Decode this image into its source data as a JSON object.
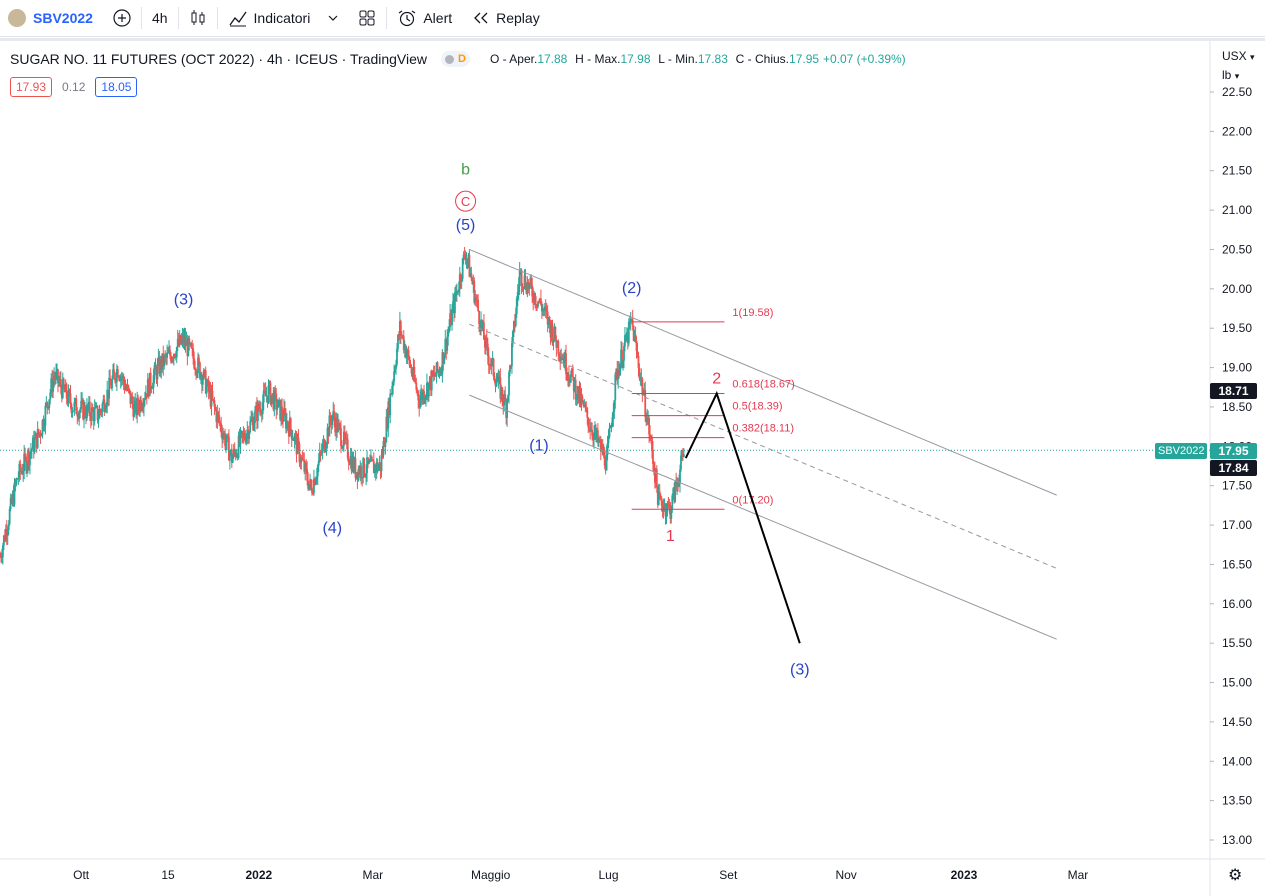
{
  "toolbar": {
    "symbol": "SBV2022",
    "interval": "4h",
    "indicators_label": "Indicatori",
    "alert_label": "Alert",
    "replay_label": "Replay"
  },
  "legend": {
    "title": "SUGAR NO. 11 FUTURES (OCT 2022) · 4h · ICEUS · TradingView",
    "d_badge": "D",
    "o_label": "O - Aper.",
    "o_value": "17.88",
    "h_label": "H - Max.",
    "h_value": "17.98",
    "l_label": "L - Min.",
    "l_value": "17.83",
    "c_label": "C - Chius.",
    "c_value": "17.95",
    "change": "+0.07 (+0.39%)"
  },
  "quote": {
    "bid": "17.93",
    "spread": "0.12",
    "ask": "18.05"
  },
  "axis": {
    "currency": "USX",
    "unit": "lb"
  },
  "tags": {
    "fib_tag": "18.71",
    "symbol_tag": "SBV2022",
    "last_price": "17.95",
    "crosshair_price": "17.84"
  },
  "colors": {
    "up": "#26a69a",
    "down": "#ef5350",
    "wave_blue": "#2943c8",
    "wave_red": "#e53950",
    "wave_green": "#43a047",
    "fib": "#e53950"
  },
  "chart_data": {
    "type": "candlestick",
    "title": "SUGAR NO. 11 FUTURES (OCT 2022)",
    "xlabel": "",
    "ylabel": "",
    "ylim": [
      12.75,
      22.7
    ],
    "yticks": [
      "22.50",
      "22.00",
      "21.50",
      "21.00",
      "20.50",
      "20.00",
      "19.50",
      "19.00",
      "18.50",
      "18.00",
      "17.50",
      "17.00",
      "16.50",
      "16.00",
      "15.50",
      "15.00",
      "14.50",
      "14.00",
      "13.50",
      "13.00"
    ],
    "xticks": [
      "Ott",
      "15",
      "2022",
      "Mar",
      "Maggio",
      "Lug",
      "Set",
      "Nov",
      "2023",
      "Mar"
    ],
    "x_range": [
      "2021-08-20",
      "2023-03-15"
    ],
    "price_path": [
      [
        "2021-08-20",
        16.6
      ],
      [
        "2021-08-29",
        17.6
      ],
      [
        "2021-09-10",
        18.2
      ],
      [
        "2021-09-17",
        18.9
      ],
      [
        "2021-09-27",
        18.5
      ],
      [
        "2021-10-10",
        18.4
      ],
      [
        "2021-10-20",
        19.0
      ],
      [
        "2021-10-29",
        18.45
      ],
      [
        "2021-11-10",
        19.0
      ],
      [
        "2021-11-23",
        19.35
      ],
      [
        "2021-12-03",
        18.9
      ],
      [
        "2021-12-18",
        17.85
      ],
      [
        "2022-01-06",
        18.7
      ],
      [
        "2022-01-18",
        18.2
      ],
      [
        "2022-01-28",
        17.45
      ],
      [
        "2022-02-08",
        18.4
      ],
      [
        "2022-02-20",
        17.7
      ],
      [
        "2022-03-05",
        17.75
      ],
      [
        "2022-03-15",
        19.5
      ],
      [
        "2022-03-25",
        18.6
      ],
      [
        "2022-04-05",
        19.0
      ],
      [
        "2022-04-18",
        20.48
      ],
      [
        "2022-04-29",
        19.2
      ],
      [
        "2022-05-09",
        18.5
      ],
      [
        "2022-05-16",
        20.2
      ],
      [
        "2022-05-27",
        19.8
      ],
      [
        "2022-06-08",
        19.1
      ],
      [
        "2022-06-21",
        18.3
      ],
      [
        "2022-06-30",
        17.8
      ],
      [
        "2022-07-05",
        18.9
      ],
      [
        "2022-07-13",
        19.58
      ],
      [
        "2022-07-22",
        18.2
      ],
      [
        "2022-07-27",
        17.3
      ],
      [
        "2022-08-02",
        17.2
      ],
      [
        "2022-08-09",
        17.9
      ]
    ],
    "fib_levels": [
      {
        "label": "1(19.58)",
        "price": 19.58
      },
      {
        "label": "0.618(18.67)",
        "price": 18.67
      },
      {
        "label": "0.5(18.39)",
        "price": 18.39
      },
      {
        "label": "0.382(18.11)",
        "price": 18.11
      },
      {
        "label": "0(17.20)",
        "price": 17.2
      }
    ],
    "wave_labels": [
      {
        "text": "(3)",
        "date": "2021-11-23",
        "price": 19.8,
        "color": "blue"
      },
      {
        "text": "(4)",
        "date": "2022-02-08",
        "price": 16.9,
        "color": "blue"
      },
      {
        "text": "(5)",
        "date": "2022-04-18",
        "price": 20.75,
        "color": "blue"
      },
      {
        "text": "C",
        "date": "2022-04-18",
        "price": 21.05,
        "color": "red"
      },
      {
        "text": "b",
        "date": "2022-04-18",
        "price": 21.45,
        "color": "green"
      },
      {
        "text": "(1)",
        "date": "2022-05-26",
        "price": 17.95,
        "color": "blue"
      },
      {
        "text": "(2)",
        "date": "2022-07-13",
        "price": 19.95,
        "color": "blue"
      },
      {
        "text": "1",
        "date": "2022-08-02",
        "price": 16.8,
        "color": "red"
      },
      {
        "text": "2",
        "date": "2022-08-26",
        "price": 18.8,
        "color": "red"
      },
      {
        "text": "(3)",
        "date": "2022-10-08",
        "price": 15.1,
        "color": "blue"
      }
    ],
    "projection": [
      [
        "2022-08-10",
        17.85
      ],
      [
        "2022-08-26",
        18.67
      ],
      [
        "2022-10-08",
        15.5
      ]
    ],
    "channel": {
      "upper": [
        [
          "2022-04-20",
          20.5
        ],
        [
          "2023-02-18",
          17.38
        ]
      ],
      "middle": [
        [
          "2022-04-20",
          19.55
        ],
        [
          "2023-02-18",
          16.45
        ]
      ],
      "lower": [
        [
          "2022-04-20",
          18.65
        ],
        [
          "2023-02-18",
          15.55
        ]
      ]
    }
  }
}
